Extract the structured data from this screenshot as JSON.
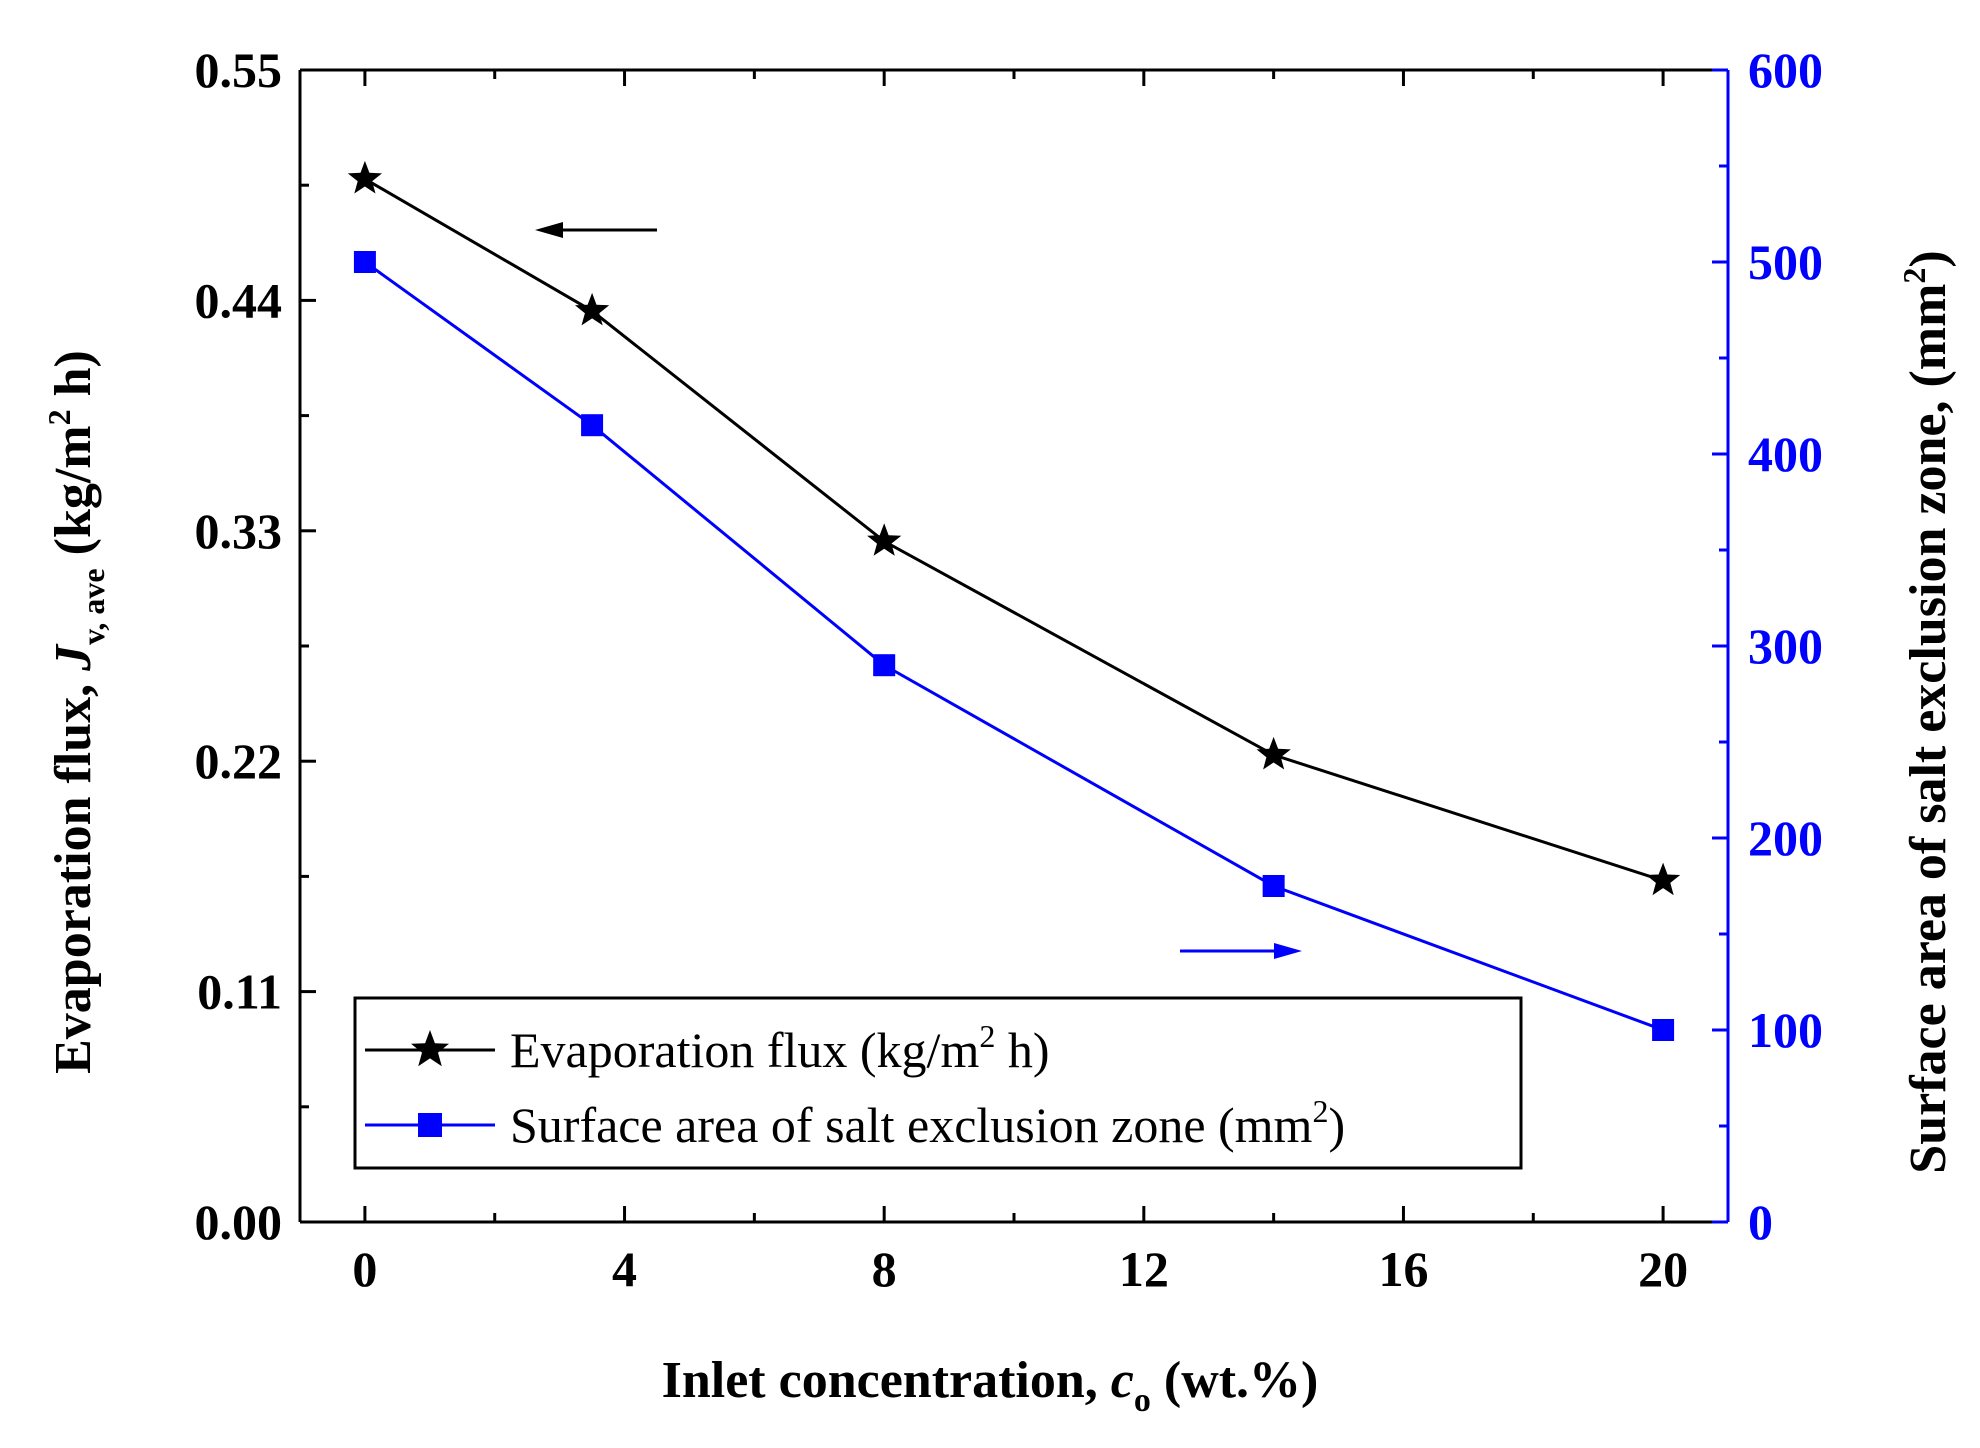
{
  "chart_data": {
    "type": "line",
    "x": [
      0,
      3.5,
      8,
      14,
      20
    ],
    "x_ticks": [
      "0",
      "4",
      "8",
      "12",
      "16",
      "20"
    ],
    "x_tick_values": [
      0,
      4,
      8,
      12,
      16,
      20
    ],
    "xlim": [
      -1,
      21
    ],
    "xlabel": {
      "text": "Inlet concentration, ",
      "symbol": "c",
      "subscript": "o",
      "suffix": " (wt.%)"
    },
    "left_axis": {
      "ylim": [
        0,
        0.55
      ],
      "ticks": [
        "0.00",
        "0.11",
        "0.22",
        "0.33",
        "0.44",
        "0.55"
      ],
      "tick_values": [
        0,
        0.11,
        0.22,
        0.33,
        0.44,
        0.55
      ],
      "label": {
        "prefix": "Evaporation flux, ",
        "symbol": "J",
        "subscript": "v, ave",
        "unit_start": " (kg/m",
        "unit_sup": "2",
        "unit_end": " h)"
      },
      "color": "#000000"
    },
    "right_axis": {
      "ylim": [
        0,
        600
      ],
      "ticks": [
        "0",
        "100",
        "200",
        "300",
        "400",
        "500",
        "600"
      ],
      "tick_values": [
        0,
        100,
        200,
        300,
        400,
        500,
        600
      ],
      "label": {
        "text": "Surface area of salt exclusion zone, (mm",
        "sup": "2",
        "end": ")"
      },
      "color": "#0000ff"
    },
    "series": [
      {
        "name": "Evaporation flux (kg/m2 h)",
        "legend_main": "Evaporation flux (kg/m",
        "legend_sup": "2",
        "legend_end": " h)",
        "axis": "left",
        "marker": "star",
        "color": "#000000",
        "values": [
          0.498,
          0.435,
          0.325,
          0.223,
          0.163
        ]
      },
      {
        "name": "Surface area of salt exclusion zone (mm2)",
        "legend_main": "Surface area of salt exclusion zone (mm",
        "legend_sup": "2",
        "legend_end": ")",
        "axis": "right",
        "marker": "square",
        "color": "#0000ff",
        "values": [
          500,
          415,
          290,
          175,
          100
        ]
      }
    ],
    "annotations": [
      {
        "type": "arrow",
        "direction": "left",
        "points_to": "left axis",
        "color": "#000000"
      },
      {
        "type": "arrow",
        "direction": "right",
        "points_to": "right axis",
        "color": "#0000ff"
      }
    ],
    "legend_position": "bottom-left",
    "grid": false
  }
}
